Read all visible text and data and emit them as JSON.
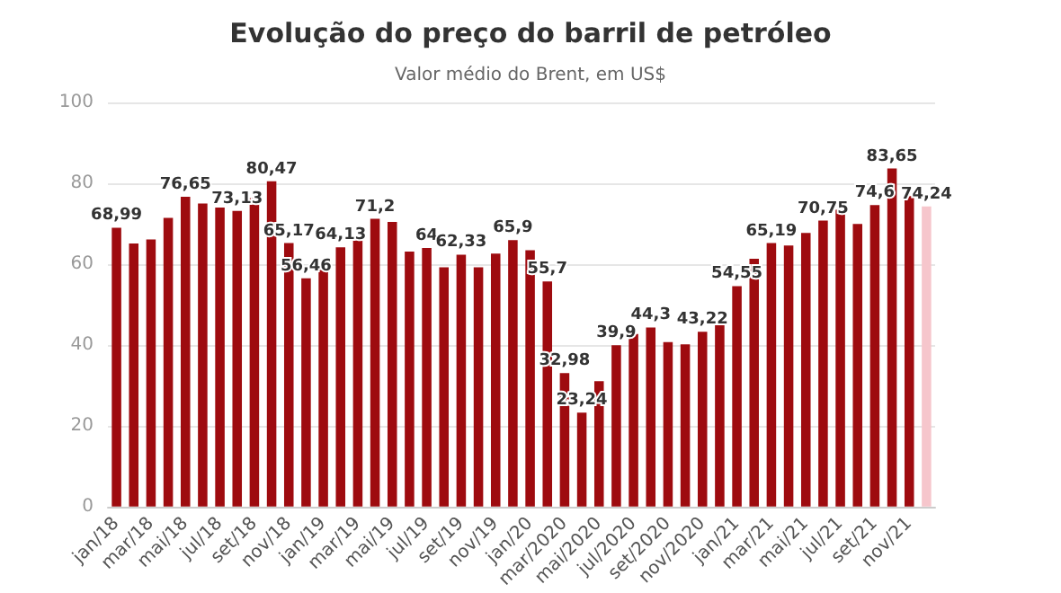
{
  "chart_data": {
    "type": "bar",
    "title": "Evolução do preço do barril de petróleo",
    "subtitle": "Valor médio do Brent, em US$",
    "categories": [
      "jan/18",
      null,
      "mar/18",
      null,
      "mai/18",
      null,
      "jul/18",
      null,
      "set/18",
      null,
      "nov/18",
      null,
      "jan/19",
      null,
      "mar/19",
      null,
      "mai/19",
      null,
      "jul/19",
      null,
      "set/19",
      null,
      "nov/19",
      null,
      "jan/20",
      null,
      "mar/2020",
      null,
      "mai/2020",
      null,
      "jul/2020",
      null,
      "set/2020",
      null,
      "nov/2020",
      null,
      "jan/21",
      null,
      "mar/21",
      null,
      "mai/21",
      null,
      "jul/21",
      null,
      "set/21",
      null,
      "nov/21",
      null
    ],
    "values": [
      68.99,
      65.1,
      66.1,
      71.4,
      76.65,
      75.0,
      74.0,
      73.13,
      76.3,
      80.47,
      65.17,
      56.46,
      59.2,
      64.13,
      66.1,
      71.2,
      70.4,
      63.1,
      64,
      59.2,
      62.33,
      59.2,
      62.6,
      65.9,
      63.4,
      55.7,
      32.98,
      23.24,
      31.0,
      39.9,
      42.7,
      44.3,
      40.7,
      40.1,
      43.22,
      45.6,
      54.55,
      61.3,
      65.19,
      64.6,
      67.7,
      70.75,
      73.4,
      69.9,
      74.6,
      83.65,
      76.8,
      74.24
    ],
    "value_labels": [
      "68,99",
      null,
      null,
      null,
      "76,65",
      null,
      null,
      "73,13",
      null,
      "80,47",
      "65,17",
      "56,46",
      null,
      "64,13",
      null,
      "71,2",
      null,
      null,
      "64",
      null,
      "62,33",
      null,
      null,
      "65,9",
      null,
      "55,7",
      "32,98",
      "23,24",
      null,
      "39,9",
      null,
      "44,3",
      null,
      null,
      "43,22",
      null,
      "54,55",
      null,
      "65,19",
      null,
      null,
      "70,75",
      null,
      null,
      "74,6",
      "83,65",
      null,
      "74,24"
    ],
    "colors": [
      "#9e0b0f",
      "#9e0b0f",
      "#9e0b0f",
      "#9e0b0f",
      "#9e0b0f",
      "#9e0b0f",
      "#9e0b0f",
      "#9e0b0f",
      "#9e0b0f",
      "#9e0b0f",
      "#9e0b0f",
      "#9e0b0f",
      "#9e0b0f",
      "#9e0b0f",
      "#9e0b0f",
      "#9e0b0f",
      "#9e0b0f",
      "#9e0b0f",
      "#9e0b0f",
      "#9e0b0f",
      "#9e0b0f",
      "#9e0b0f",
      "#9e0b0f",
      "#9e0b0f",
      "#9e0b0f",
      "#9e0b0f",
      "#9e0b0f",
      "#9e0b0f",
      "#9e0b0f",
      "#9e0b0f",
      "#9e0b0f",
      "#9e0b0f",
      "#9e0b0f",
      "#9e0b0f",
      "#9e0b0f",
      "#9e0b0f",
      "#9e0b0f",
      "#9e0b0f",
      "#9e0b0f",
      "#9e0b0f",
      "#9e0b0f",
      "#9e0b0f",
      "#9e0b0f",
      "#9e0b0f",
      "#9e0b0f",
      "#9e0b0f",
      "#9e0b0f",
      "#f6c6cc"
    ],
    "ylim": [
      0,
      100
    ],
    "yticks": [
      0,
      20,
      40,
      60,
      80,
      100
    ],
    "grid": "y"
  }
}
